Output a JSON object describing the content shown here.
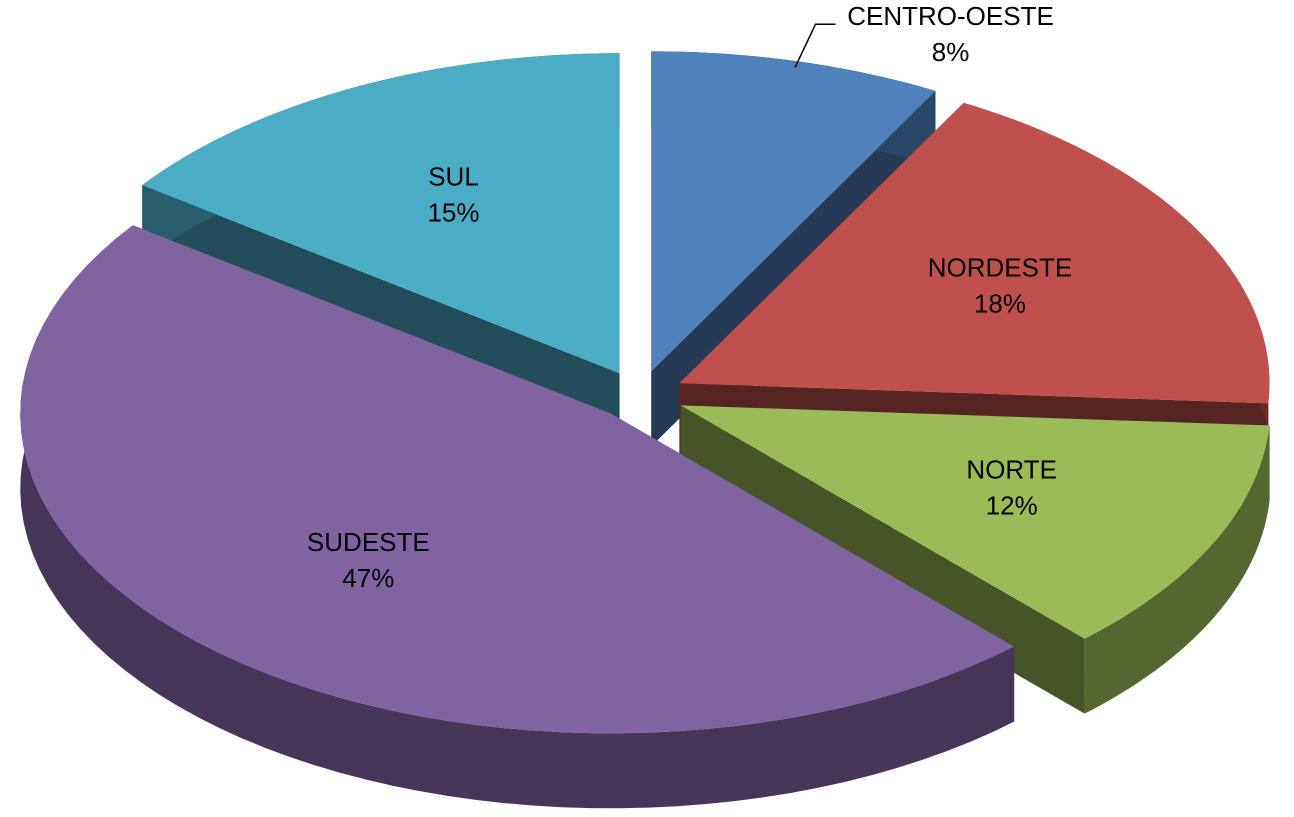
{
  "chart_data": {
    "type": "pie3d",
    "categories": [
      "CENTRO-OESTE",
      "NORDESTE",
      "NORTE",
      "SUDESTE",
      "SUL"
    ],
    "values": [
      8,
      18,
      12,
      47,
      15
    ],
    "value_labels": [
      "8%",
      "18%",
      "12%",
      "47%",
      "15%"
    ],
    "colors": [
      "#4f81bd",
      "#c0504d",
      "#9bbb59",
      "#8064a2",
      "#4bacc6"
    ]
  }
}
